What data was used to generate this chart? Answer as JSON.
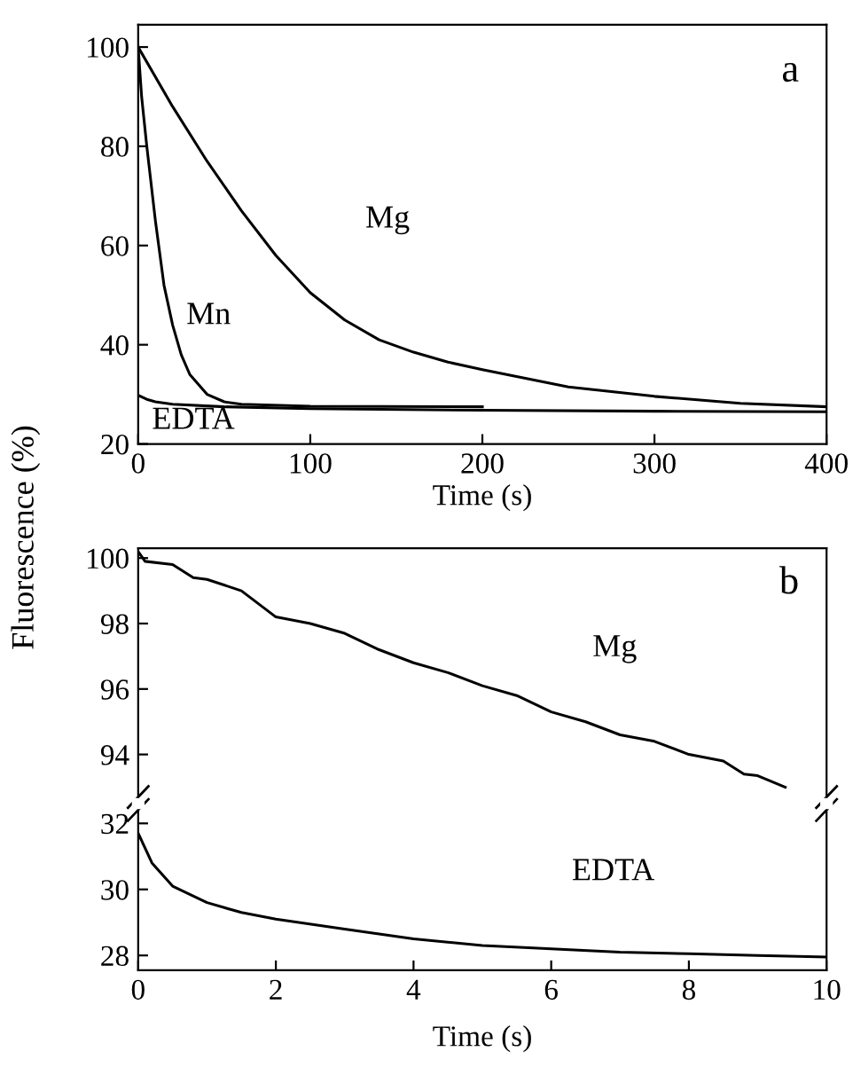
{
  "chart_data": [
    {
      "type": "line",
      "xlabel": "Time (s)",
      "ylabel": "Fluorescence (%)",
      "xlim": [
        0,
        400
      ],
      "ylim": [
        20,
        104.5
      ],
      "xticks": [
        0,
        100,
        200,
        300,
        400
      ],
      "yticks": [
        20,
        40,
        60,
        80,
        100
      ],
      "grid": false,
      "annotations": [
        "a"
      ],
      "series": [
        {
          "name": "Mg",
          "color": "#000000",
          "x": [
            0,
            20,
            40,
            60,
            80,
            100,
            120,
            140,
            160,
            180,
            200,
            250,
            300,
            350,
            400
          ],
          "values": [
            100,
            88,
            77,
            67,
            58,
            50.5,
            45,
            41,
            38.5,
            36.5,
            35,
            31.5,
            29.6,
            28.2,
            27.5
          ]
        },
        {
          "name": "Mn",
          "color": "#000000",
          "x": [
            0,
            2,
            5,
            10,
            15,
            20,
            25,
            30,
            40,
            50,
            60,
            100,
            200
          ],
          "values": [
            100,
            90,
            80,
            65,
            52,
            44,
            38,
            34,
            30,
            28.5,
            28,
            27.6,
            27.5
          ]
        },
        {
          "name": "EDTA",
          "color": "#000000",
          "x": [
            0,
            5,
            10,
            20,
            50,
            100,
            200,
            300,
            400
          ],
          "values": [
            29.8,
            29,
            28.5,
            28,
            27.5,
            27.1,
            26.8,
            26.6,
            26.5
          ]
        }
      ]
    },
    {
      "type": "line",
      "xlim": [
        0,
        10
      ],
      "ylim": [
        92.5,
        100.3
      ],
      "yticks": [
        94,
        96,
        98,
        100
      ],
      "tick_labels": "y",
      "grid": false,
      "annotations": [
        "b"
      ],
      "series": [
        {
          "name": "Mg",
          "color": "#000000",
          "x": [
            0,
            0.1,
            0.5,
            0.8,
            1.0,
            1.5,
            2.0,
            2.5,
            3.0,
            3.5,
            4.0,
            4.5,
            5.0,
            5.5,
            6.0,
            6.5,
            7.0,
            7.5,
            8.0,
            8.5,
            8.8,
            9.0,
            9.4
          ],
          "values": [
            100.2,
            99.9,
            99.8,
            99.4,
            99.35,
            99.0,
            98.2,
            98.0,
            97.7,
            97.2,
            96.8,
            96.5,
            96.1,
            95.8,
            95.3,
            95.0,
            94.6,
            94.4,
            94.0,
            93.8,
            93.4,
            93.35,
            93.0
          ]
        }
      ]
    },
    {
      "type": "line",
      "xlabel": "Time (s)",
      "xlim": [
        0,
        10
      ],
      "ylim": [
        27.55,
        32.6
      ],
      "xticks": [
        0,
        2,
        4,
        6,
        8,
        10
      ],
      "yticks": [
        28,
        30,
        32
      ],
      "grid": false,
      "series": [
        {
          "name": "EDTA",
          "color": "#000000",
          "x": [
            0,
            0.2,
            0.5,
            1,
            1.5,
            2,
            3,
            4,
            5,
            6,
            7,
            8,
            9,
            10
          ],
          "values": [
            31.7,
            30.8,
            30.1,
            29.6,
            29.3,
            29.1,
            28.8,
            28.5,
            28.3,
            28.2,
            28.1,
            28.05,
            28.0,
            27.95
          ]
        }
      ]
    }
  ]
}
